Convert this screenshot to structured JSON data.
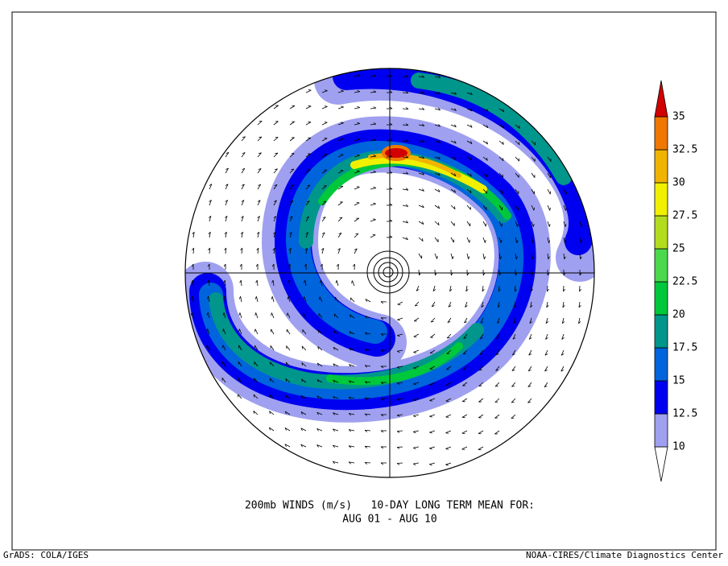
{
  "map": {
    "title": "200mb WINDS (m/s)   10-DAY LONG TERM MEAN FOR:",
    "subtitle": "AUG 01 - AUG 10",
    "footer_left": "GrADS: COLA/IGES",
    "footer_right": "NOAA-CIRES/Climate Diagnostics Center",
    "colorbar": {
      "levels": [
        10,
        12.5,
        15,
        17.5,
        20,
        22.5,
        25,
        27.5,
        30,
        32.5,
        35
      ],
      "colors": [
        "#ffffff",
        "#a0a0f0",
        "#0000f0",
        "#0064dc",
        "#00968c",
        "#00c83c",
        "#4cd84c",
        "#b4dc1e",
        "#f0f000",
        "#f0b400",
        "#f07800",
        "#d20000"
      ]
    }
  }
}
